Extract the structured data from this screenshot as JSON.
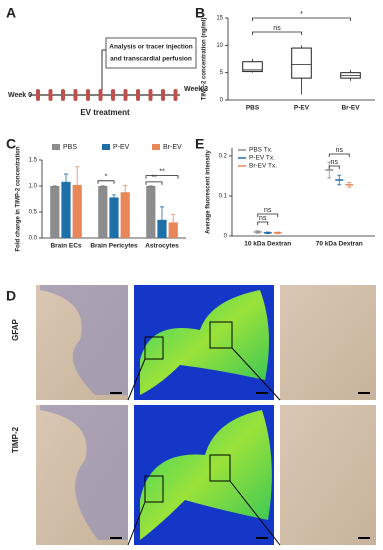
{
  "panels": {
    "A": {
      "label": "A",
      "box_text": [
        "Analysis or tracer injection",
        "and transcardial perfusion"
      ],
      "start": "Week 0",
      "end": "Week 3",
      "treatment": "EV treatment"
    },
    "D": {
      "label": "D",
      "rows": [
        "GFAP",
        "TIMP-2"
      ]
    }
  },
  "chart_data": [
    {
      "type": "box",
      "panel": "B",
      "ylabel": "TIMP-2 concentration (ng/ml)",
      "categories": [
        "PBS",
        "P-EV",
        "Br-EV"
      ],
      "boxes": [
        {
          "min": 5,
          "q1": 5.2,
          "median": 5.5,
          "q3": 7,
          "max": 7.5
        },
        {
          "min": 1,
          "q1": 4,
          "median": 6.5,
          "q3": 9.5,
          "max": 10
        },
        {
          "min": 3.5,
          "q1": 4,
          "median": 4.5,
          "q3": 5,
          "max": 5.5
        }
      ],
      "ylim": [
        0,
        15
      ],
      "yticks": [
        0,
        5,
        10,
        15
      ],
      "annotations": [
        "ns",
        "*"
      ]
    },
    {
      "type": "bar",
      "panel": "C",
      "ylabel": "Fold change in TIMP-2 concentration",
      "categories": [
        "Brain ECs",
        "Brain Pericytes",
        "Astrocytes"
      ],
      "series": [
        {
          "name": "PBS",
          "color": "#8c8c8c",
          "values": [
            1,
            1,
            1
          ],
          "errors": [
            0,
            0,
            0
          ]
        },
        {
          "name": "P-EV",
          "color": "#1f6fa8",
          "values": [
            1.08,
            0.78,
            0.35
          ],
          "errors": [
            0.15,
            0.05,
            0.25
          ]
        },
        {
          "name": "Br-EV",
          "color": "#e8875a",
          "values": [
            1.02,
            0.88,
            0.3
          ],
          "errors": [
            0.35,
            0.13,
            0.15
          ]
        }
      ],
      "ylim": [
        0,
        1.5
      ],
      "yticks": [
        {
          "value": 0,
          "label": "0.0"
        },
        0.5,
        {
          "value": 1,
          "label": "1.0"
        },
        1.5
      ],
      "annotations": [
        "*",
        "**",
        "**"
      ]
    },
    {
      "type": "errorpoint",
      "panel": "E",
      "ylabel": "Average fluorescent intensity",
      "categories": [
        "10 kDa Dextran",
        "70 kDa Dextran"
      ],
      "series": [
        {
          "name": "PBS Tx.",
          "color": "#8c8c8c",
          "values": [
            0.01,
            0.165
          ],
          "errors": [
            0.003,
            0.02
          ]
        },
        {
          "name": "P-EV Tx.",
          "color": "#1f6fa8",
          "values": [
            0.008,
            0.14
          ],
          "errors": [
            0.002,
            0.012
          ]
        },
        {
          "name": "Br-EV Tx.",
          "color": "#e8875a",
          "values": [
            0.008,
            0.128
          ],
          "errors": [
            0.002,
            0.006
          ]
        }
      ],
      "ylim": [
        0,
        0.22
      ],
      "yticks": [
        0,
        0.1,
        0.2
      ],
      "annotations": [
        "ns",
        "ns",
        "ns",
        "ns"
      ]
    }
  ]
}
